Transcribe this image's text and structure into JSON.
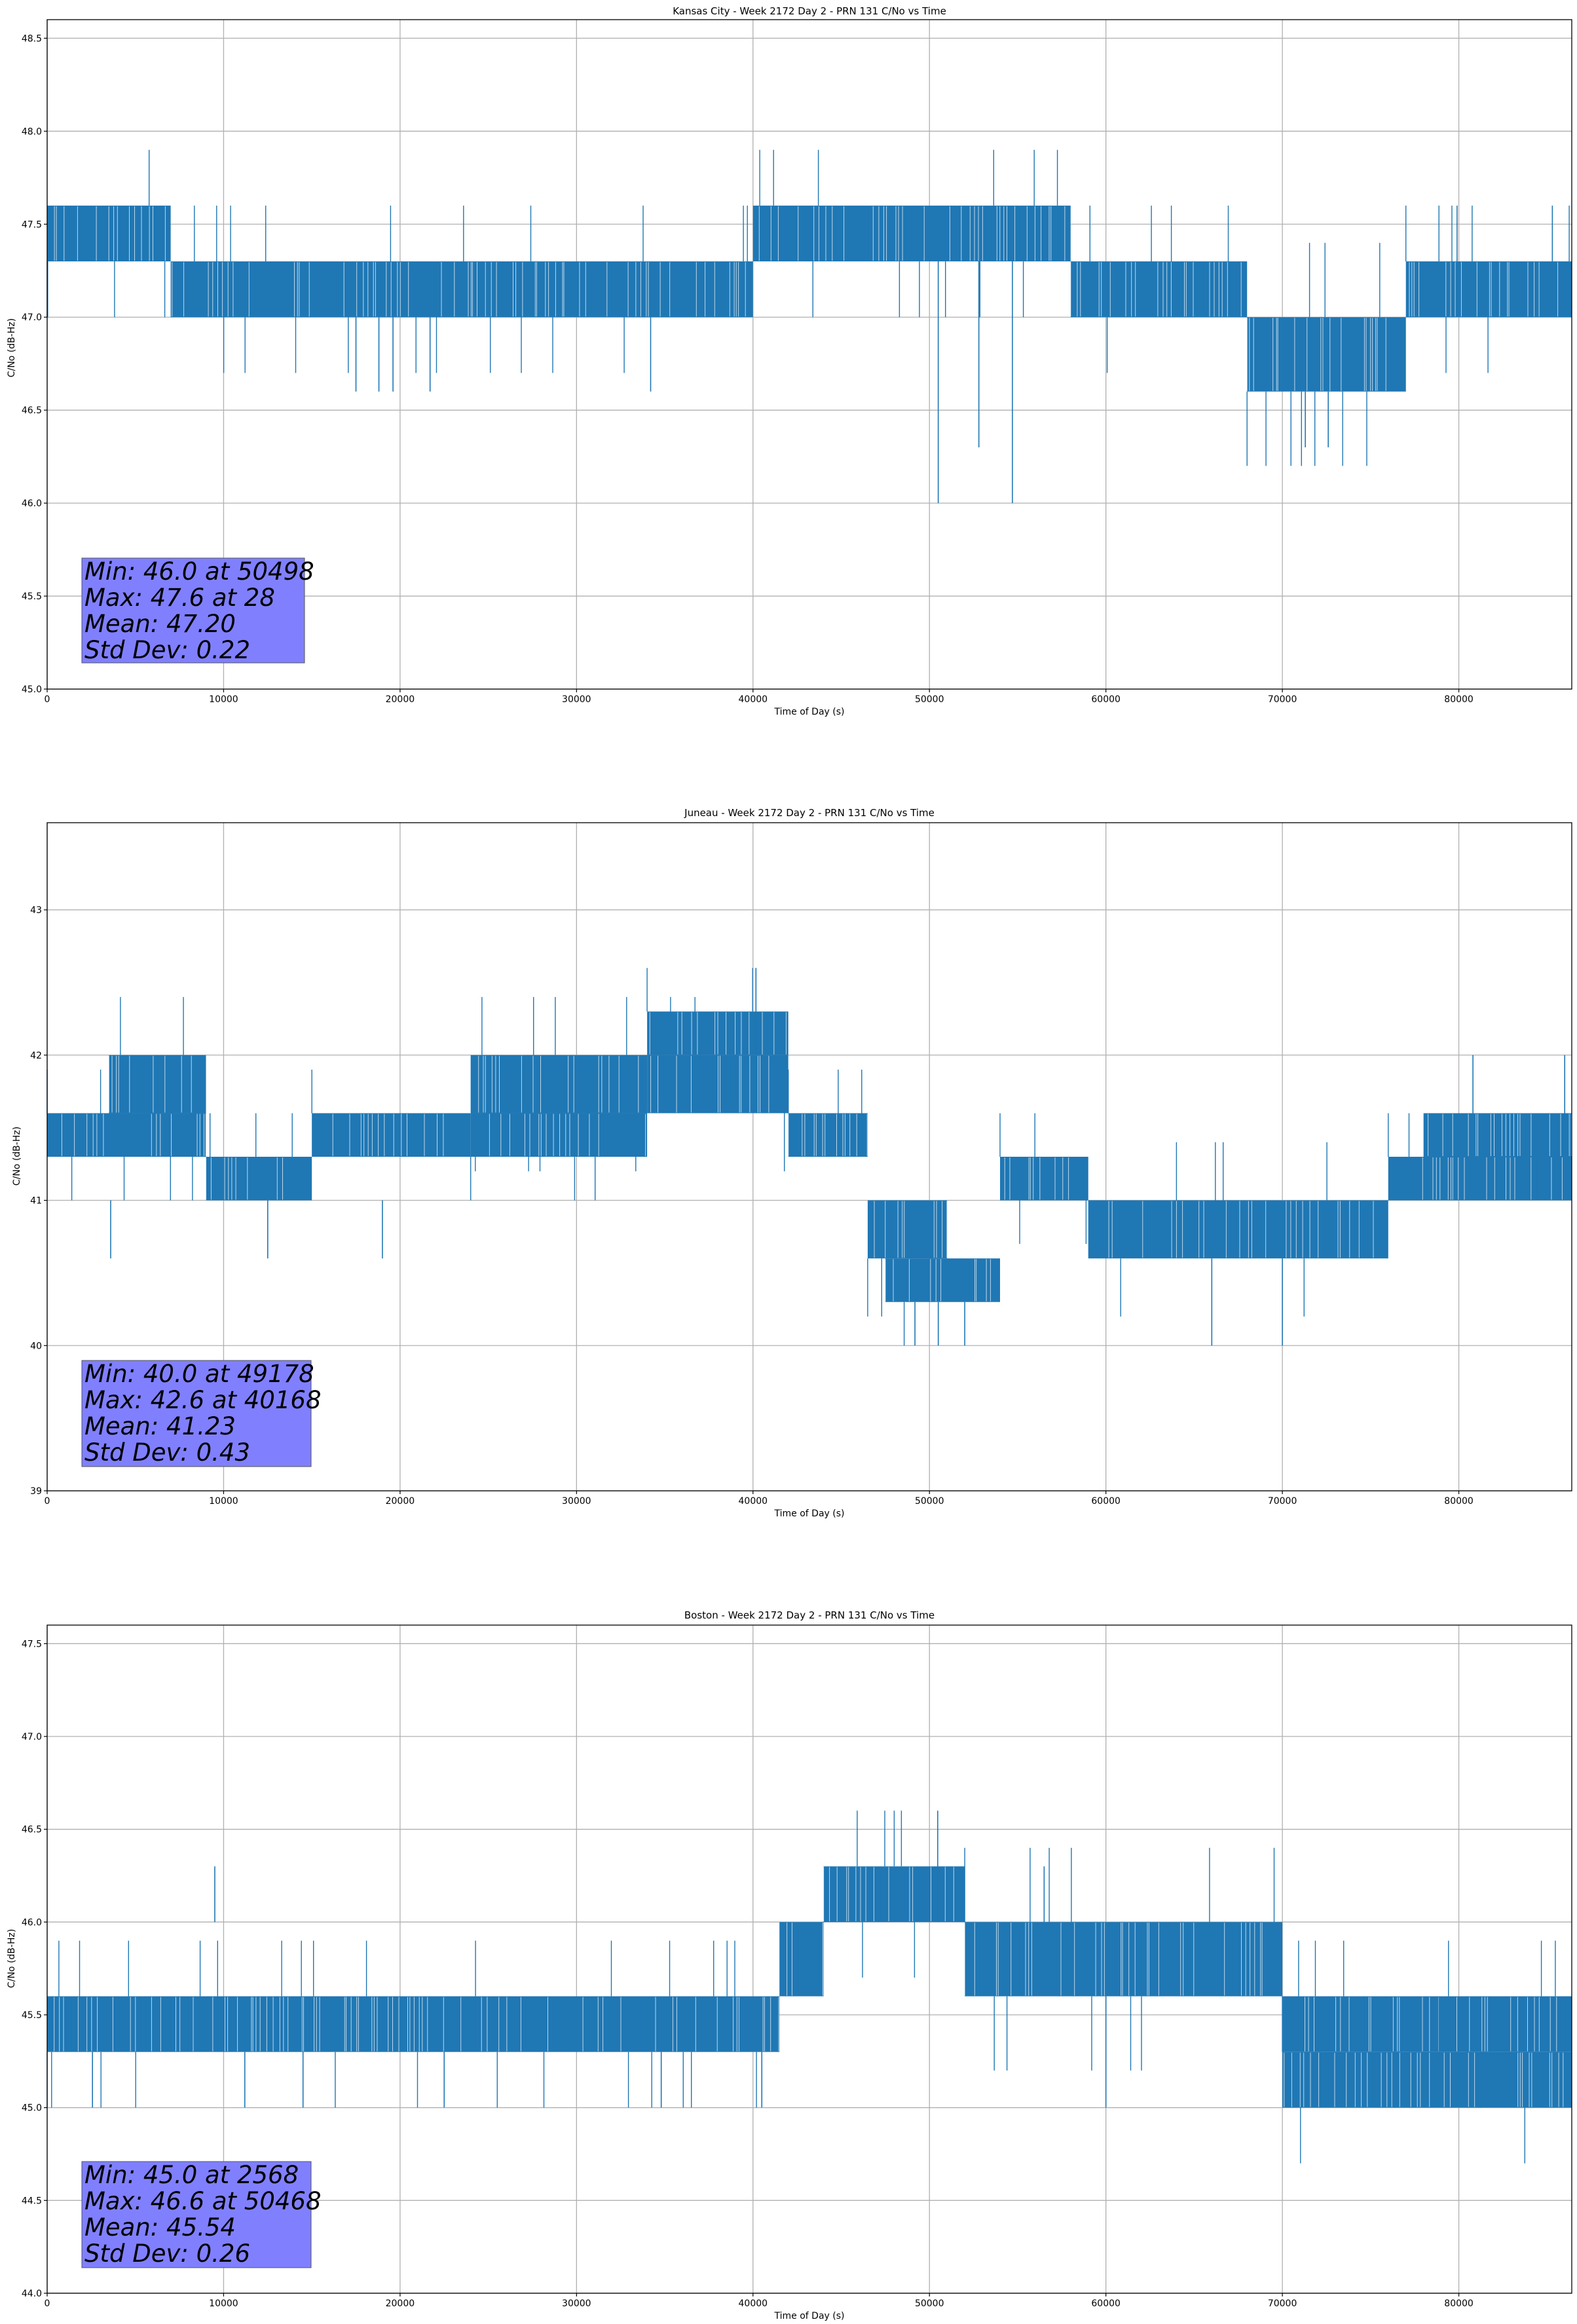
{
  "chart_data": [
    {
      "type": "line",
      "title": "Kansas City - Week 2172 Day 2 - PRN 131 C/No vs Time",
      "xlabel": "Time of Day (s)",
      "ylabel": "C/No (dB-Hz)",
      "xlim": [
        0,
        86400
      ],
      "ylim": [
        45.0,
        48.6
      ],
      "xticks": [
        0,
        10000,
        20000,
        30000,
        40000,
        50000,
        60000,
        70000,
        80000
      ],
      "yticks": [
        "45.0",
        "45.5",
        "46.0",
        "46.5",
        "47.0",
        "47.5",
        "48.0",
        "48.5"
      ],
      "grid": true,
      "series_color": "#1f77b4",
      "stats": [
        "Min: 46.0 at 50498",
        "Max: 47.6 at 28",
        "Mean: 47.20",
        "Std Dev: 0.22"
      ],
      "bands": [
        {
          "x": [
            0,
            7000
          ],
          "lo": 47.3,
          "hi": 47.6
        },
        {
          "x": [
            7000,
            40000
          ],
          "lo": 47.0,
          "hi": 47.3
        },
        {
          "x": [
            40000,
            58000
          ],
          "lo": 47.3,
          "hi": 47.6
        },
        {
          "x": [
            58000,
            68000
          ],
          "lo": 47.0,
          "hi": 47.3
        },
        {
          "x": [
            68000,
            77000
          ],
          "lo": 46.6,
          "hi": 47.0
        },
        {
          "x": [
            77000,
            86400
          ],
          "lo": 47.0,
          "hi": 47.3
        }
      ],
      "spikes": [
        {
          "x": 28,
          "y1": 47.0,
          "y2": 47.6
        },
        {
          "x": 17500,
          "y1": 47.0,
          "y2": 46.6
        },
        {
          "x": 18800,
          "y1": 47.0,
          "y2": 46.6
        },
        {
          "x": 19600,
          "y1": 47.0,
          "y2": 46.6
        },
        {
          "x": 21700,
          "y1": 47.0,
          "y2": 46.6
        },
        {
          "x": 34200,
          "y1": 47.0,
          "y2": 46.6
        },
        {
          "x": 50498,
          "y1": 47.3,
          "y2": 46.0
        },
        {
          "x": 52800,
          "y1": 47.3,
          "y2": 46.3
        },
        {
          "x": 54700,
          "y1": 47.3,
          "y2": 46.0
        },
        {
          "x": 71300,
          "y1": 46.6,
          "y2": 46.3
        },
        {
          "x": 72600,
          "y1": 46.6,
          "y2": 46.3
        },
        {
          "x": 79900,
          "y1": 47.3,
          "y2": 47.6
        },
        {
          "x": 85300,
          "y1": 47.3,
          "y2": 47.6
        }
      ]
    },
    {
      "type": "line",
      "title": "Juneau - Week 2172 Day 2 - PRN 131 C/No vs Time",
      "xlabel": "Time of Day (s)",
      "ylabel": "C/No (dB-Hz)",
      "xlim": [
        0,
        86400
      ],
      "ylim": [
        39.0,
        43.6
      ],
      "xticks": [
        0,
        10000,
        20000,
        30000,
        40000,
        50000,
        60000,
        70000,
        80000
      ],
      "yticks": [
        "39",
        "40",
        "41",
        "42",
        "43"
      ],
      "grid": true,
      "series_color": "#1f77b4",
      "stats": [
        "Min: 40.0 at 49178",
        "Max: 42.6 at 40168",
        "Mean: 41.23",
        "Std Dev: 0.43"
      ],
      "bands": [
        {
          "x": [
            0,
            9000
          ],
          "lo": 41.3,
          "hi": 41.6
        },
        {
          "x": [
            3500,
            9000
          ],
          "lo": 41.6,
          "hi": 42.0
        },
        {
          "x": [
            9000,
            15000
          ],
          "lo": 41.0,
          "hi": 41.3
        },
        {
          "x": [
            15000,
            24000
          ],
          "lo": 41.3,
          "hi": 41.6
        },
        {
          "x": [
            24000,
            34000
          ],
          "lo": 41.3,
          "hi": 41.6
        },
        {
          "x": [
            24000,
            34000
          ],
          "lo": 41.6,
          "hi": 42.0
        },
        {
          "x": [
            34000,
            42000
          ],
          "lo": 41.6,
          "hi": 42.0
        },
        {
          "x": [
            34000,
            42000
          ],
          "lo": 42.0,
          "hi": 42.3
        },
        {
          "x": [
            42000,
            46500
          ],
          "lo": 41.3,
          "hi": 41.6
        },
        {
          "x": [
            46500,
            51000
          ],
          "lo": 40.6,
          "hi": 41.0
        },
        {
          "x": [
            47500,
            54000
          ],
          "lo": 40.3,
          "hi": 40.6
        },
        {
          "x": [
            54000,
            59000
          ],
          "lo": 41.0,
          "hi": 41.3
        },
        {
          "x": [
            59000,
            64000
          ],
          "lo": 40.6,
          "hi": 41.0
        },
        {
          "x": [
            64000,
            76000
          ],
          "lo": 40.6,
          "hi": 41.0
        },
        {
          "x": [
            76000,
            86400
          ],
          "lo": 41.0,
          "hi": 41.3
        },
        {
          "x": [
            78000,
            86400
          ],
          "lo": 41.3,
          "hi": 41.6
        }
      ],
      "spikes": [
        {
          "x": 3600,
          "y1": 41.0,
          "y2": 40.6
        },
        {
          "x": 12500,
          "y1": 41.0,
          "y2": 40.6
        },
        {
          "x": 19000,
          "y1": 41.0,
          "y2": 40.6
        },
        {
          "x": 40168,
          "y1": 42.0,
          "y2": 42.6
        },
        {
          "x": 49178,
          "y1": 40.3,
          "y2": 40.0
        },
        {
          "x": 50500,
          "y1": 40.3,
          "y2": 40.0
        },
        {
          "x": 52000,
          "y1": 40.3,
          "y2": 40.0
        },
        {
          "x": 66000,
          "y1": 40.6,
          "y2": 40.0
        },
        {
          "x": 70000,
          "y1": 40.6,
          "y2": 40.0
        },
        {
          "x": 80800,
          "y1": 41.6,
          "y2": 42.0
        },
        {
          "x": 86000,
          "y1": 41.6,
          "y2": 42.0
        }
      ]
    },
    {
      "type": "line",
      "title": "Boston - Week 2172 Day 2 - PRN 131 C/No vs Time",
      "xlabel": "Time of Day (s)",
      "ylabel": "C/No (dB-Hz)",
      "xlim": [
        0,
        86400
      ],
      "ylim": [
        44.0,
        47.6
      ],
      "xticks": [
        0,
        10000,
        20000,
        30000,
        40000,
        50000,
        60000,
        70000,
        80000
      ],
      "yticks": [
        "44.0",
        "44.5",
        "45.0",
        "45.5",
        "46.0",
        "46.5",
        "47.0",
        "47.5"
      ],
      "grid": true,
      "series_color": "#1f77b4",
      "stats": [
        "Min: 45.0 at 2568",
        "Max: 46.6 at 50468",
        "Mean: 45.54",
        "Std Dev: 0.26"
      ],
      "bands": [
        {
          "x": [
            0,
            41500
          ],
          "lo": 45.3,
          "hi": 45.6
        },
        {
          "x": [
            41500,
            44000
          ],
          "lo": 45.6,
          "hi": 46.0
        },
        {
          "x": [
            44000,
            52000
          ],
          "lo": 46.0,
          "hi": 46.3
        },
        {
          "x": [
            52000,
            70000
          ],
          "lo": 45.6,
          "hi": 46.0
        },
        {
          "x": [
            70000,
            86400
          ],
          "lo": 45.3,
          "hi": 45.6
        },
        {
          "x": [
            70000,
            86400
          ],
          "lo": 45.0,
          "hi": 45.3
        }
      ],
      "spikes": [
        {
          "x": 2568,
          "y1": 45.3,
          "y2": 45.0
        },
        {
          "x": 9500,
          "y1": 46.0,
          "y2": 46.3
        },
        {
          "x": 11200,
          "y1": 45.3,
          "y2": 45.0
        },
        {
          "x": 14500,
          "y1": 45.3,
          "y2": 45.0
        },
        {
          "x": 22500,
          "y1": 45.3,
          "y2": 45.0
        },
        {
          "x": 34800,
          "y1": 45.3,
          "y2": 45.0
        },
        {
          "x": 40500,
          "y1": 45.3,
          "y2": 45.0
        },
        {
          "x": 50468,
          "y1": 46.0,
          "y2": 46.6
        },
        {
          "x": 56500,
          "y1": 46.0,
          "y2": 46.3
        },
        {
          "x": 60000,
          "y1": 45.6,
          "y2": 45.0
        }
      ]
    }
  ]
}
